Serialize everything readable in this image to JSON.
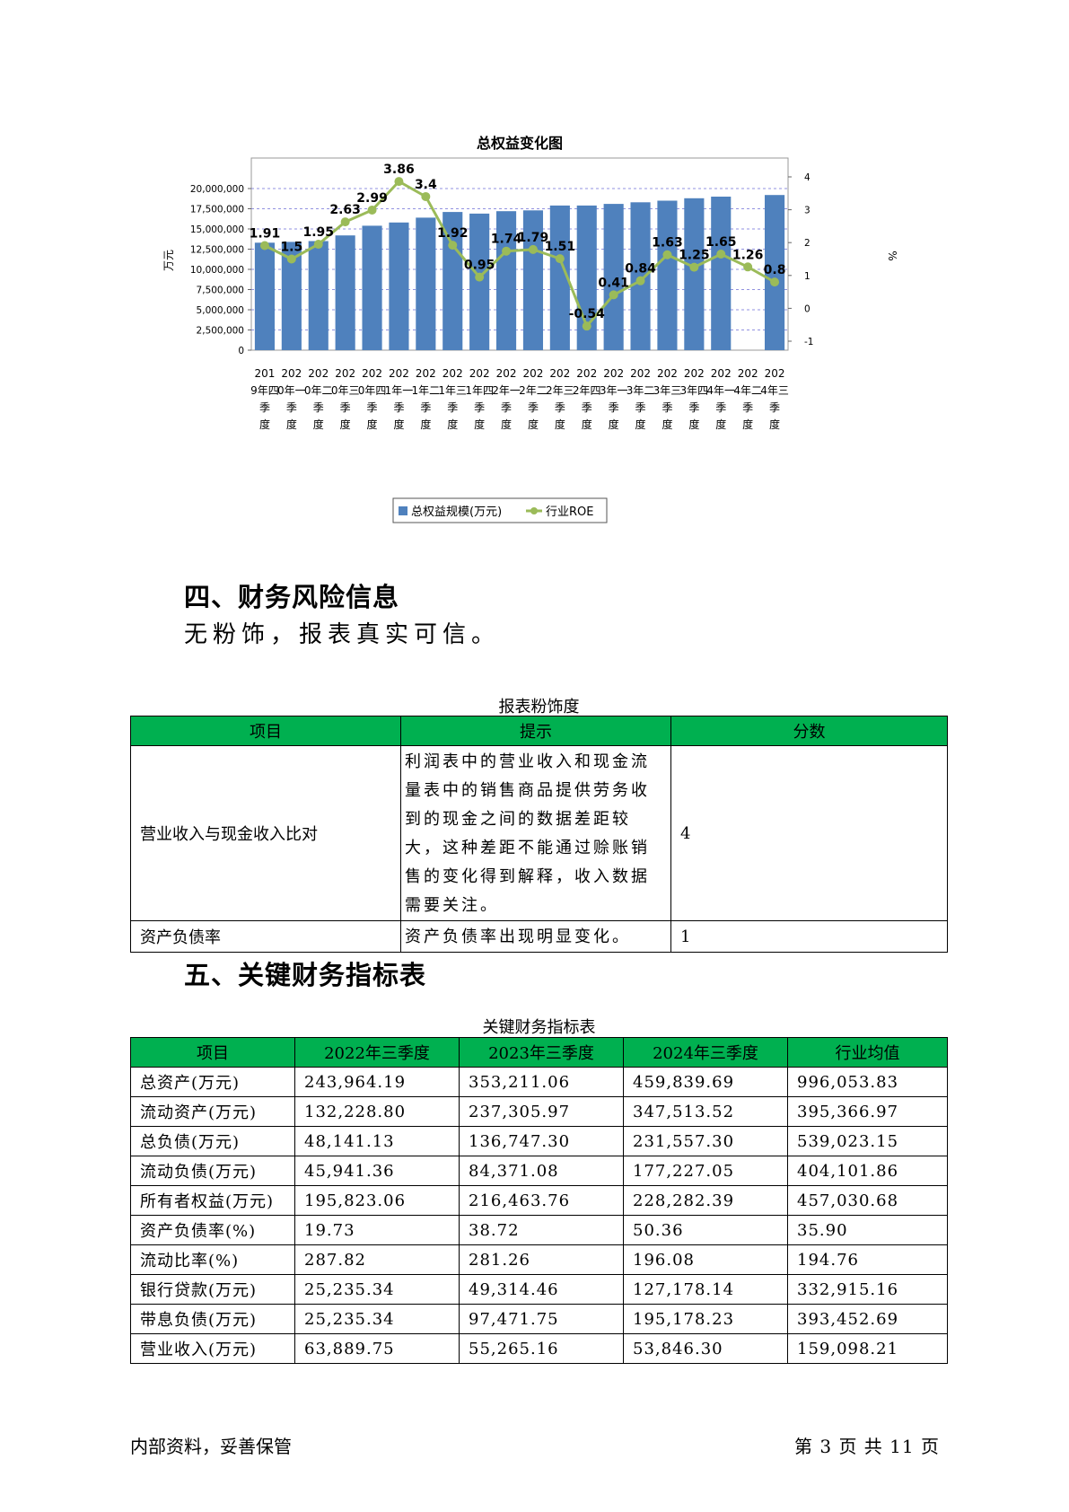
{
  "chart_data": {
    "type": "bar+line",
    "title": "总权益变化图",
    "ylabel": "万元",
    "y2label": "%",
    "categories": [
      "2019年四季度",
      "2020年一季度",
      "2020年二季度",
      "2020年三季度",
      "2020年四季度",
      "2021年一季度",
      "2021年二季度",
      "2021年三季度",
      "2021年四季度",
      "2022年一季度",
      "2022年二季度",
      "2022年三季度",
      "2022年四季度",
      "2023年一季度",
      "2023年二季度",
      "2023年三季度",
      "2023年四季度",
      "2024年一季度",
      "2024年二季度",
      "2024年三季度"
    ],
    "y_ticks": [
      "0",
      "2,500,000",
      "5,000,000",
      "7,500,000",
      "10,000,000",
      "12,500,000",
      "15,000,000",
      "17,500,000",
      "20,000,000"
    ],
    "y2_ticks": [
      "-1",
      "0",
      "1",
      "2",
      "3",
      "4"
    ],
    "ylim": [
      0,
      20000000
    ],
    "y2lim": [
      -1,
      4
    ],
    "series": [
      {
        "name": "总权益规模(万元)",
        "type": "bar",
        "color": "#4f81bd",
        "values": [
          13300000,
          13400000,
          13500000,
          14200000,
          15400000,
          15800000,
          16400000,
          17100000,
          16900000,
          17200000,
          17300000,
          17900000,
          17900000,
          18100000,
          18300000,
          18500000,
          18800000,
          19000000,
          null,
          19200000
        ]
      },
      {
        "name": "行业ROE",
        "type": "line",
        "color": "#9bbb59",
        "values": [
          1.91,
          1.5,
          1.95,
          2.63,
          2.99,
          3.86,
          3.4,
          1.92,
          0.95,
          1.74,
          1.79,
          1.51,
          -0.54,
          0.41,
          0.84,
          1.63,
          1.25,
          1.65,
          1.26,
          0.8
        ],
        "labels": [
          "1.91",
          "1.5",
          "1.95",
          "2.63",
          "2.99",
          "3.86",
          "3.4",
          "1.92",
          "0.95",
          "1.74",
          "1.79",
          "1.51",
          "-0.54",
          "0.41",
          "0.84",
          "1.63",
          "1.25",
          "1.65",
          "1.26",
          "0.8"
        ]
      }
    ]
  },
  "section4": {
    "title": "四、财务风险信息",
    "text": "无粉饰，报表真实可信。",
    "table_caption": "报表粉饰度",
    "headers": [
      "项目",
      "提示",
      "分数"
    ],
    "rows": [
      {
        "item": "营业收入与现金收入比对",
        "hint": "利润表中的营业收入和现金流量表中的销售商品提供劳务收到的现金之间的数据差距较大，这种差距不能通过赊账销售的变化得到解释，收入数据需要关注。",
        "score": "4"
      },
      {
        "item": "资产负债率",
        "hint": "资产负债率出现明显变化。",
        "score": "1"
      }
    ]
  },
  "section5": {
    "title": "五、关键财务指标表",
    "table_caption": "关键财务指标表",
    "headers": [
      "项目",
      "2022年三季度",
      "2023年三季度",
      "2024年三季度",
      "行业均值"
    ],
    "rows": [
      [
        "总资产(万元)",
        "243,964.19",
        "353,211.06",
        "459,839.69",
        "996,053.83"
      ],
      [
        "流动资产(万元)",
        "132,228.80",
        "237,305.97",
        "347,513.52",
        "395,366.97"
      ],
      [
        "总负债(万元)",
        "48,141.13",
        "136,747.30",
        "231,557.30",
        "539,023.15"
      ],
      [
        "流动负债(万元)",
        "45,941.36",
        "84,371.08",
        "177,227.05",
        "404,101.86"
      ],
      [
        "所有者权益(万元)",
        "195,823.06",
        "216,463.76",
        "228,282.39",
        "457,030.68"
      ],
      [
        "资产负债率(%)",
        "19.73",
        "38.72",
        "50.36",
        "35.90"
      ],
      [
        "流动比率(%)",
        "287.82",
        "281.26",
        "196.08",
        "194.76"
      ],
      [
        "银行贷款(万元)",
        "25,235.34",
        "49,314.46",
        "127,178.14",
        "332,915.16"
      ],
      [
        "带息负债(万元)",
        "25,235.34",
        "97,471.75",
        "195,178.23",
        "393,452.69"
      ],
      [
        "营业收入(万元)",
        "63,889.75",
        "55,265.16",
        "53,846.30",
        "159,098.21"
      ]
    ]
  },
  "footer": {
    "left": "内部资料，妥善保管",
    "right": "第 3 页   共 11 页"
  }
}
